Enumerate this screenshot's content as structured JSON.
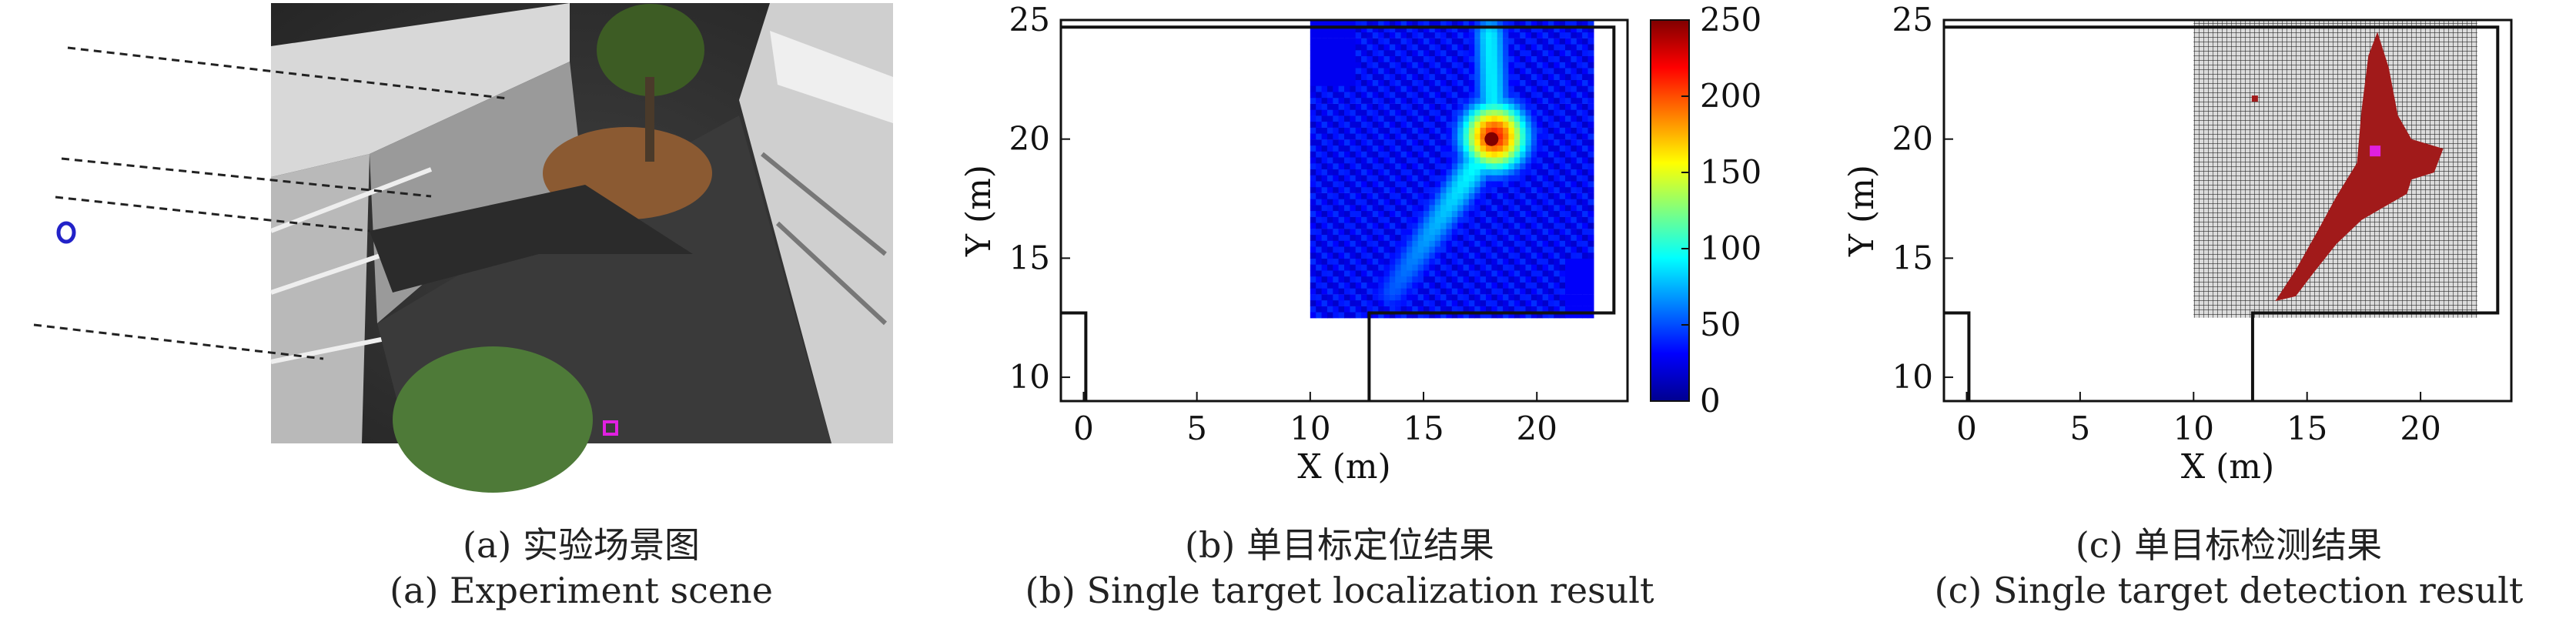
{
  "panels": [
    {
      "id": "a",
      "caption_cn": "(a) 实验场景图",
      "caption_en": "(a) Experiment scene"
    },
    {
      "id": "b",
      "caption_cn": "(b) 单目标定位结果",
      "caption_en": "(b) Single target localization result"
    },
    {
      "id": "c",
      "caption_cn": "(c) 单目标检测结果",
      "caption_en": "(c) Single target detection result"
    }
  ],
  "chart_data": [
    {
      "type": "heatmap",
      "panel": "b",
      "xlabel": "X (m)",
      "ylabel": "Y (m)",
      "xlim": [
        -1,
        24
      ],
      "ylim": [
        9,
        25
      ],
      "xticks": [
        0,
        5,
        10,
        15,
        20
      ],
      "yticks": [
        10,
        15,
        20,
        25
      ],
      "colorbar": {
        "min": 0,
        "max": 250,
        "ticks": [
          0,
          50,
          100,
          150,
          200,
          250
        ],
        "colormap": "jet"
      },
      "heatmap_extent": {
        "x": [
          10,
          22.5
        ],
        "y": [
          12.5,
          25
        ]
      },
      "peak": {
        "x": 18,
        "y": 20,
        "value": 250
      }
    },
    {
      "type": "heatmap",
      "panel": "c",
      "xlabel": "X (m)",
      "ylabel": "Y (m)",
      "xlim": [
        -1,
        24
      ],
      "ylim": [
        9,
        25
      ],
      "xticks": [
        0,
        5,
        10,
        15,
        20
      ],
      "yticks": [
        10,
        15,
        20,
        25
      ],
      "grid_extent": {
        "x": [
          10,
          22.5
        ],
        "y": [
          12.5,
          25
        ]
      },
      "detection_color": "#a11a1a",
      "target": {
        "x": 18,
        "y": 19.5,
        "color": "#e020e0"
      }
    }
  ]
}
